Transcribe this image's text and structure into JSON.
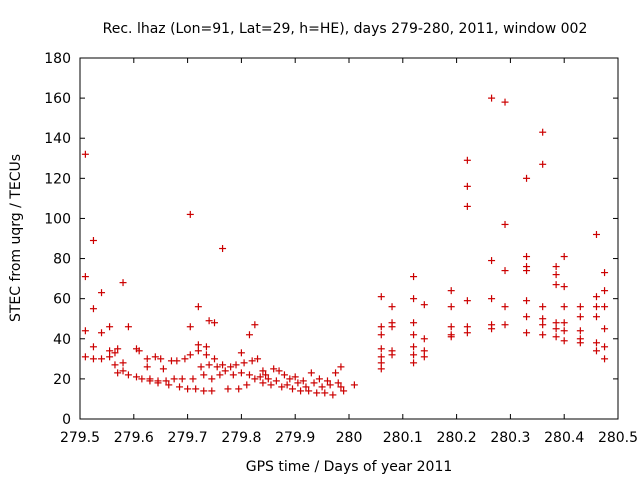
{
  "chart_data": {
    "type": "scatter",
    "title": "Rec. lhaz (Lon=91, Lat=29, h=HE), days 279-280, 2011, window 002",
    "xlabel": "GPS time / Days of year 2011",
    "ylabel": "STEC from uqrg / TECUs",
    "xlim": [
      279.5,
      280.5
    ],
    "ylim": [
      0,
      180
    ],
    "x_ticks": [
      279.5,
      279.6,
      279.7,
      279.8,
      279.9,
      280.0,
      280.1,
      280.2,
      280.3,
      280.4,
      280.5
    ],
    "x_tick_labels": [
      "279.5",
      "279.6",
      "279.7",
      "279.8",
      "279.9",
      "280",
      "280.1",
      "280.2",
      "280.3",
      "280.4",
      "280.5"
    ],
    "y_ticks": [
      0,
      20,
      40,
      60,
      80,
      100,
      120,
      140,
      160,
      180
    ],
    "y_tick_labels": [
      "0",
      "20",
      "40",
      "60",
      "80",
      "100",
      "120",
      "140",
      "160",
      "180"
    ],
    "marker": "plus",
    "marker_color": "#cc0000",
    "grid": false,
    "legend": "none",
    "series": [
      {
        "points": [
          [
            279.51,
            132
          ],
          [
            279.51,
            71
          ],
          [
            279.51,
            44
          ],
          [
            279.51,
            31
          ],
          [
            279.525,
            89
          ],
          [
            279.525,
            55
          ],
          [
            279.525,
            36
          ],
          [
            279.525,
            30
          ],
          [
            279.54,
            63
          ],
          [
            279.54,
            43
          ],
          [
            279.54,
            30
          ],
          [
            279.555,
            46
          ],
          [
            279.555,
            34
          ],
          [
            279.555,
            31
          ],
          [
            279.565,
            33
          ],
          [
            279.565,
            27
          ],
          [
            279.57,
            35
          ],
          [
            279.57,
            23
          ],
          [
            279.58,
            68
          ],
          [
            279.58,
            28
          ],
          [
            279.58,
            24
          ],
          [
            279.59,
            46
          ],
          [
            279.59,
            22
          ],
          [
            279.605,
            35
          ],
          [
            279.605,
            21
          ],
          [
            279.61,
            34
          ],
          [
            279.615,
            20
          ],
          [
            279.625,
            30
          ],
          [
            279.625,
            26
          ],
          [
            279.63,
            20
          ],
          [
            279.63,
            19
          ],
          [
            279.64,
            31
          ],
          [
            279.645,
            19
          ],
          [
            279.645,
            18
          ],
          [
            279.65,
            30
          ],
          [
            279.655,
            25
          ],
          [
            279.66,
            19
          ],
          [
            279.665,
            17
          ],
          [
            279.67,
            29
          ],
          [
            279.675,
            20
          ],
          [
            279.68,
            29
          ],
          [
            279.685,
            16
          ],
          [
            279.69,
            20
          ],
          [
            279.695,
            30
          ],
          [
            279.7,
            15
          ],
          [
            279.705,
            102
          ],
          [
            279.705,
            46
          ],
          [
            279.705,
            32
          ],
          [
            279.71,
            20
          ],
          [
            279.715,
            15
          ],
          [
            279.72,
            56
          ],
          [
            279.72,
            37
          ],
          [
            279.72,
            34
          ],
          [
            279.725,
            26
          ],
          [
            279.73,
            22
          ],
          [
            279.73,
            14
          ],
          [
            279.735,
            36
          ],
          [
            279.735,
            32
          ],
          [
            279.74,
            49
          ],
          [
            279.74,
            27
          ],
          [
            279.745,
            20
          ],
          [
            279.745,
            14
          ],
          [
            279.75,
            48
          ],
          [
            279.75,
            30
          ],
          [
            279.755,
            26
          ],
          [
            279.76,
            22
          ],
          [
            279.765,
            85
          ],
          [
            279.765,
            27
          ],
          [
            279.77,
            24
          ],
          [
            279.775,
            15
          ],
          [
            279.78,
            26
          ],
          [
            279.785,
            22
          ],
          [
            279.79,
            27
          ],
          [
            279.795,
            15
          ],
          [
            279.8,
            33
          ],
          [
            279.8,
            23
          ],
          [
            279.805,
            28
          ],
          [
            279.81,
            17
          ],
          [
            279.815,
            42
          ],
          [
            279.815,
            22
          ],
          [
            279.82,
            29
          ],
          [
            279.825,
            47
          ],
          [
            279.825,
            20
          ],
          [
            279.83,
            30
          ],
          [
            279.835,
            21
          ],
          [
            279.84,
            24
          ],
          [
            279.84,
            18
          ],
          [
            279.845,
            22
          ],
          [
            279.85,
            20
          ],
          [
            279.855,
            17
          ],
          [
            279.86,
            25
          ],
          [
            279.865,
            19
          ],
          [
            279.87,
            24
          ],
          [
            279.875,
            16
          ],
          [
            279.88,
            22
          ],
          [
            279.885,
            17
          ],
          [
            279.89,
            20
          ],
          [
            279.895,
            15
          ],
          [
            279.9,
            21
          ],
          [
            279.905,
            18
          ],
          [
            279.91,
            14
          ],
          [
            279.915,
            19
          ],
          [
            279.92,
            16
          ],
          [
            279.925,
            14
          ],
          [
            279.93,
            23
          ],
          [
            279.935,
            18
          ],
          [
            279.94,
            13
          ],
          [
            279.945,
            20
          ],
          [
            279.95,
            16
          ],
          [
            279.955,
            13
          ],
          [
            279.96,
            19
          ],
          [
            279.965,
            17
          ],
          [
            279.97,
            12
          ],
          [
            279.975,
            23
          ],
          [
            279.98,
            18
          ],
          [
            279.985,
            26
          ],
          [
            279.985,
            16
          ],
          [
            279.99,
            14
          ],
          [
            280.01,
            17
          ],
          [
            280.06,
            61
          ],
          [
            280.06,
            46
          ],
          [
            280.06,
            42
          ],
          [
            280.06,
            35
          ],
          [
            280.06,
            31
          ],
          [
            280.06,
            28
          ],
          [
            280.06,
            25
          ],
          [
            280.08,
            56
          ],
          [
            280.08,
            48
          ],
          [
            280.08,
            46
          ],
          [
            280.08,
            34
          ],
          [
            280.08,
            32
          ],
          [
            280.12,
            71
          ],
          [
            280.12,
            60
          ],
          [
            280.12,
            48
          ],
          [
            280.12,
            42
          ],
          [
            280.12,
            36
          ],
          [
            280.12,
            32
          ],
          [
            280.12,
            28
          ],
          [
            280.14,
            57
          ],
          [
            280.14,
            40
          ],
          [
            280.14,
            34
          ],
          [
            280.14,
            31
          ],
          [
            280.19,
            64
          ],
          [
            280.19,
            56
          ],
          [
            280.19,
            46
          ],
          [
            280.19,
            42
          ],
          [
            280.19,
            41
          ],
          [
            280.22,
            129
          ],
          [
            280.22,
            116
          ],
          [
            280.22,
            106
          ],
          [
            280.22,
            59
          ],
          [
            280.22,
            46
          ],
          [
            280.22,
            43
          ],
          [
            280.265,
            160
          ],
          [
            280.265,
            79
          ],
          [
            280.265,
            60
          ],
          [
            280.265,
            47
          ],
          [
            280.265,
            45
          ],
          [
            280.29,
            158
          ],
          [
            280.29,
            97
          ],
          [
            280.29,
            74
          ],
          [
            280.29,
            56
          ],
          [
            280.29,
            47
          ],
          [
            280.33,
            120
          ],
          [
            280.33,
            81
          ],
          [
            280.33,
            76
          ],
          [
            280.33,
            74
          ],
          [
            280.33,
            59
          ],
          [
            280.33,
            51
          ],
          [
            280.33,
            43
          ],
          [
            280.36,
            143
          ],
          [
            280.36,
            127
          ],
          [
            280.36,
            56
          ],
          [
            280.36,
            50
          ],
          [
            280.36,
            47
          ],
          [
            280.36,
            42
          ],
          [
            280.385,
            76
          ],
          [
            280.385,
            72
          ],
          [
            280.385,
            67
          ],
          [
            280.385,
            48
          ],
          [
            280.385,
            45
          ],
          [
            280.385,
            41
          ],
          [
            280.4,
            81
          ],
          [
            280.4,
            66
          ],
          [
            280.4,
            56
          ],
          [
            280.4,
            48
          ],
          [
            280.4,
            44
          ],
          [
            280.4,
            39
          ],
          [
            280.43,
            56
          ],
          [
            280.43,
            51
          ],
          [
            280.43,
            44
          ],
          [
            280.43,
            40
          ],
          [
            280.43,
            38
          ],
          [
            280.46,
            92
          ],
          [
            280.46,
            61
          ],
          [
            280.46,
            56
          ],
          [
            280.46,
            51
          ],
          [
            280.46,
            38
          ],
          [
            280.46,
            34
          ],
          [
            280.475,
            73
          ],
          [
            280.475,
            64
          ],
          [
            280.475,
            56
          ],
          [
            280.475,
            45
          ],
          [
            280.475,
            36
          ],
          [
            280.475,
            30
          ]
        ]
      }
    ]
  }
}
